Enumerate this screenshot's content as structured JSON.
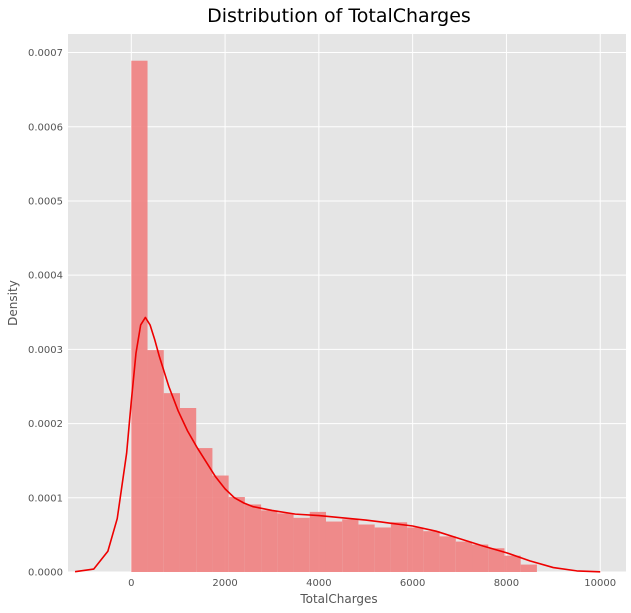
{
  "chart_data": {
    "type": "bar",
    "title": "Distribution of TotalCharges",
    "xlabel": "TotalCharges",
    "ylabel": "Density",
    "xlim": [
      -1350,
      10550
    ],
    "ylim": [
      0,
      0.000725
    ],
    "xticks": [
      0,
      2000,
      4000,
      6000,
      8000,
      10000
    ],
    "yticks": [
      0,
      0.0001,
      0.0002,
      0.0003,
      0.0004,
      0.0005,
      0.0006,
      0.0007
    ],
    "xtick_labels": [
      "0",
      "2000",
      "4000",
      "6000",
      "8000",
      "10000"
    ],
    "ytick_labels": [
      "0.0000",
      "0.0001",
      "0.0002",
      "0.0003",
      "0.0004",
      "0.0005",
      "0.0006",
      "0.0007"
    ],
    "grid": true,
    "background": "#e5e5e5",
    "grid_color": "#ffffff",
    "bar_color": "#f08080",
    "kde_color": "#ee0000",
    "bin_edges": [
      0,
      346,
      692,
      1038,
      1384,
      1730,
      2076,
      2422,
      2768,
      3114,
      3460,
      3806,
      4152,
      4498,
      4844,
      5190,
      5536,
      5882,
      6228,
      6574,
      6920,
      7266,
      7612,
      7958,
      8304,
      8650
    ],
    "densities": [
      0.000689,
      0.000299,
      0.000241,
      0.000221,
      0.000167,
      0.00013,
      0.000101,
      9.1e-05,
      8.3e-05,
      7.9e-05,
      7.3e-05,
      8.1e-05,
      6.8e-05,
      7.1e-05,
      6.4e-05,
      6e-05,
      6.7e-05,
      6e-05,
      5.5e-05,
      4.8e-05,
      4.1e-05,
      3.7e-05,
      3.2e-05,
      2.2e-05,
      1e-05
    ],
    "kde": {
      "x": [
        -1200,
        -800,
        -500,
        -300,
        -100,
        0,
        100,
        200,
        300,
        400,
        500,
        600,
        800,
        1000,
        1200,
        1400,
        1600,
        1800,
        2000,
        2200,
        2400,
        2600,
        3000,
        3500,
        4000,
        4500,
        5000,
        5500,
        6000,
        6500,
        7000,
        7500,
        8000,
        8500,
        9000,
        9500,
        10000
      ],
      "y": [
        4e-07,
        4e-06,
        2.8e-05,
        7.2e-05,
        0.00016,
        0.00023,
        0.000295,
        0.000333,
        0.000343,
        0.000333,
        0.000313,
        0.00029,
        0.00025,
        0.000217,
        0.00019,
        0.000168,
        0.000148,
        0.000128,
        0.000112,
        0.0001,
        9.3e-05,
        8.8e-05,
        8.3e-05,
        7.8e-05,
        7.6e-05,
        7.3e-05,
        7e-05,
        6.6e-05,
        6.2e-05,
        5.5e-05,
        4.5e-05,
        3.5e-05,
        2.6e-05,
        1.5e-05,
        6e-06,
        1.5e-06,
        2e-07
      ]
    }
  }
}
